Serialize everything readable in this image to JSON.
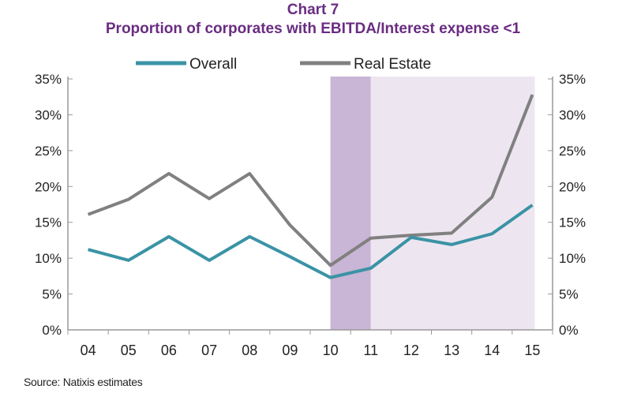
{
  "chart_data": {
    "type": "line",
    "title": "Chart 7",
    "subtitle": "Proportion of corporates with EBITDA/Interest expense <1",
    "categories": [
      "04",
      "05",
      "06",
      "07",
      "08",
      "09",
      "10",
      "11",
      "12",
      "13",
      "14",
      "15"
    ],
    "series": [
      {
        "name": "Overall",
        "color": "#3a93a5",
        "values": [
          11.2,
          9.7,
          13.0,
          9.7,
          13.0,
          10.2,
          7.3,
          8.6,
          12.9,
          11.9,
          13.4,
          17.4
        ]
      },
      {
        "name": "Real Estate",
        "color": "#808080",
        "values": [
          16.1,
          18.2,
          21.8,
          18.3,
          21.8,
          14.6,
          9.0,
          12.8,
          13.2,
          13.5,
          18.5,
          32.8
        ]
      }
    ],
    "ylim": [
      0,
      35
    ],
    "yticks": [
      "0%",
      "5%",
      "10%",
      "15%",
      "20%",
      "25%",
      "30%",
      "35%"
    ],
    "yticks_right": [
      "0%",
      "5%",
      "10%",
      "15%",
      "20%",
      "25%",
      "30%",
      "35%"
    ],
    "shaded_regions": [
      {
        "from": "10",
        "to": "11",
        "color": "#c9b5d5"
      },
      {
        "from": "11",
        "to": "15",
        "color": "#ede6f0"
      }
    ],
    "legend_position": "top",
    "grid": false
  },
  "source": "Source: Natixis estimates"
}
